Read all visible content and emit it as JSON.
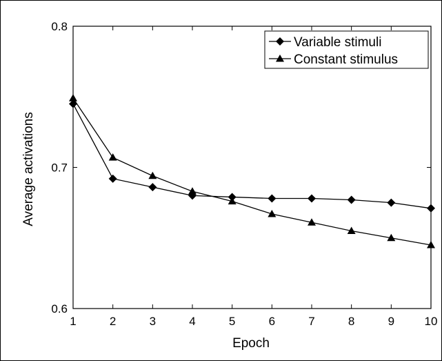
{
  "chart_data": {
    "type": "line",
    "title": "",
    "xlabel": "Epoch",
    "ylabel": "Average activations",
    "x": [
      1,
      2,
      3,
      4,
      5,
      6,
      7,
      8,
      9,
      10
    ],
    "xlim": [
      1,
      10
    ],
    "ylim": [
      0.6,
      0.8
    ],
    "xticks": [
      "1",
      "2",
      "3",
      "4",
      "5",
      "6",
      "7",
      "8",
      "9",
      "10"
    ],
    "yticks": [
      {
        "value": 0.6,
        "label": "0.6"
      },
      {
        "value": 0.7,
        "label": "0.7"
      },
      {
        "value": 0.8,
        "label": "0.8"
      }
    ],
    "grid": false,
    "legend": "top-right",
    "series": [
      {
        "name": "Variable stimuli",
        "marker": "diamond",
        "color": "#000000",
        "values": [
          0.745,
          0.692,
          0.686,
          0.68,
          0.679,
          0.678,
          0.678,
          0.677,
          0.675,
          0.671
        ]
      },
      {
        "name": "Constant stimulus",
        "marker": "triangle",
        "color": "#000000",
        "values": [
          0.749,
          0.707,
          0.694,
          0.683,
          0.676,
          0.667,
          0.661,
          0.655,
          0.65,
          0.645
        ]
      }
    ]
  }
}
